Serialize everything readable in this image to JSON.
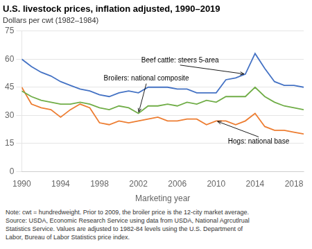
{
  "chart_data": {
    "type": "line",
    "title": "U.S. livestock prices, inflation adjusted, 1990–2019",
    "subtitle": "Dollars per cwt (1982–1984)",
    "x_label": "Marketing year",
    "x": [
      1990,
      1991,
      1992,
      1993,
      1994,
      1995,
      1996,
      1997,
      1998,
      1999,
      2000,
      2001,
      2002,
      2003,
      2004,
      2005,
      2006,
      2007,
      2008,
      2009,
      2010,
      2011,
      2012,
      2013,
      2014,
      2015,
      2016,
      2017,
      2018,
      2019
    ],
    "series": [
      {
        "name": "Beef cattle: steers 5-area",
        "color": "#4472c4",
        "values": [
          60,
          56,
          53,
          51,
          48,
          46,
          44,
          43,
          41,
          40,
          42,
          43,
          42,
          45,
          45,
          45,
          44,
          44,
          42,
          42,
          42,
          49,
          50,
          52,
          63,
          55,
          48,
          46,
          46,
          45
        ]
      },
      {
        "name": "Broilers: national composite",
        "color": "#70ad47",
        "values": [
          43,
          40,
          38,
          37,
          36,
          36,
          37,
          36,
          34,
          33,
          35,
          34,
          31,
          35,
          35,
          36,
          35,
          37,
          36,
          38,
          37,
          40,
          40,
          40,
          45,
          40,
          37,
          35,
          34,
          33
        ]
      },
      {
        "name": "Hogs: national base",
        "color": "#ed7d31",
        "values": [
          45,
          36,
          34,
          33,
          29,
          33,
          36,
          34,
          26,
          25,
          27,
          26,
          27,
          28,
          29,
          27,
          27,
          28,
          28,
          25,
          27,
          27,
          25,
          27,
          31,
          24,
          22,
          22,
          21,
          20
        ]
      }
    ],
    "xlim": [
      1990,
      2019
    ],
    "xticks": [
      1990,
      1994,
      1998,
      2002,
      2006,
      2010,
      2014,
      2018
    ],
    "ylim": [
      0,
      75
    ],
    "yticks": [
      0,
      15,
      30,
      45,
      60,
      75
    ],
    "grid": true,
    "notes": [
      "Note: cwt = hundredweight. Prior to 2009, the broiler price is the 12-city market average.",
      "Source: USDA, Economic Research Service using data from USDA, National Agrcutlrual",
      "Statistics Service. Values are adjusted to 1982-84 levels using the U.S. Department of",
      "Labor, Bureau of Labor Statistics price index."
    ]
  }
}
